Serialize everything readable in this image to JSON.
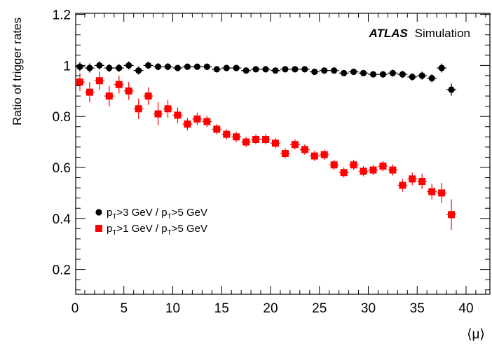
{
  "chart_data": {
    "type": "scatter",
    "title": "",
    "annotation": {
      "bold": "ATLAS",
      "regular": "Simulation"
    },
    "xlabel": "⟨μ⟩",
    "ylabel": "Ratio of trigger rates",
    "xlim": [
      0,
      42.5
    ],
    "ylim": [
      0.1,
      1.2
    ],
    "x_ticks": [
      "0",
      "5",
      "10",
      "15",
      "20",
      "25",
      "30",
      "35",
      "40"
    ],
    "y_ticks": [
      "0.2",
      "0.4",
      "0.6",
      "0.8",
      "1",
      "1.2"
    ],
    "legend_position": "bottom-left",
    "series": [
      {
        "name_parts": [
          "p",
          "T",
          ">3 GeV / p",
          "T",
          ">5 GeV"
        ],
        "color": "#000000",
        "marker": "circle",
        "x": [
          0.5,
          1.5,
          2.5,
          3.5,
          4.5,
          5.5,
          6.5,
          7.5,
          8.5,
          9.5,
          10.5,
          11.5,
          12.5,
          13.5,
          14.5,
          15.5,
          16.5,
          17.5,
          18.5,
          19.5,
          20.5,
          21.5,
          22.5,
          23.5,
          24.5,
          25.5,
          26.5,
          27.5,
          28.5,
          29.5,
          30.5,
          31.5,
          32.5,
          33.5,
          34.5,
          35.5,
          36.5,
          37.5,
          38.5
        ],
        "y": [
          0.995,
          0.99,
          1.0,
          0.99,
          0.99,
          1.0,
          0.98,
          1.0,
          0.995,
          0.995,
          0.99,
          0.995,
          0.995,
          0.995,
          0.985,
          0.99,
          0.99,
          0.98,
          0.985,
          0.985,
          0.98,
          0.985,
          0.985,
          0.985,
          0.975,
          0.98,
          0.98,
          0.97,
          0.975,
          0.97,
          0.965,
          0.965,
          0.97,
          0.965,
          0.955,
          0.96,
          0.95,
          0.99,
          0.905
        ],
        "err": [
          0.018,
          0.018,
          0.016,
          0.016,
          0.016,
          0.016,
          0.016,
          0.014,
          0.014,
          0.014,
          0.012,
          0.012,
          0.012,
          0.012,
          0.012,
          0.012,
          0.012,
          0.012,
          0.012,
          0.012,
          0.012,
          0.012,
          0.012,
          0.012,
          0.012,
          0.012,
          0.012,
          0.012,
          0.012,
          0.012,
          0.012,
          0.012,
          0.014,
          0.014,
          0.014,
          0.016,
          0.016,
          0.018,
          0.024
        ]
      },
      {
        "name_parts": [
          "p",
          "T",
          ">1 GeV / p",
          "T",
          ">5 GeV"
        ],
        "color": "#ff0000",
        "marker": "square",
        "x": [
          0.5,
          1.5,
          2.5,
          3.5,
          4.5,
          5.5,
          6.5,
          7.5,
          8.5,
          9.5,
          10.5,
          11.5,
          12.5,
          13.5,
          14.5,
          15.5,
          16.5,
          17.5,
          18.5,
          19.5,
          20.5,
          21.5,
          22.5,
          23.5,
          24.5,
          25.5,
          26.5,
          27.5,
          28.5,
          29.5,
          30.5,
          31.5,
          32.5,
          33.5,
          34.5,
          35.5,
          36.5,
          37.5,
          38.5
        ],
        "y": [
          0.935,
          0.895,
          0.94,
          0.88,
          0.925,
          0.9,
          0.83,
          0.88,
          0.81,
          0.83,
          0.805,
          0.77,
          0.79,
          0.78,
          0.75,
          0.73,
          0.72,
          0.7,
          0.71,
          0.71,
          0.695,
          0.655,
          0.69,
          0.67,
          0.645,
          0.65,
          0.61,
          0.58,
          0.61,
          0.585,
          0.59,
          0.605,
          0.59,
          0.53,
          0.555,
          0.545,
          0.505,
          0.5,
          0.415
        ],
        "err": [
          0.035,
          0.04,
          0.035,
          0.04,
          0.035,
          0.035,
          0.04,
          0.035,
          0.045,
          0.035,
          0.03,
          0.025,
          0.025,
          0.022,
          0.02,
          0.02,
          0.02,
          0.02,
          0.02,
          0.02,
          0.02,
          0.02,
          0.02,
          0.02,
          0.02,
          0.02,
          0.02,
          0.02,
          0.02,
          0.02,
          0.02,
          0.02,
          0.022,
          0.025,
          0.025,
          0.03,
          0.03,
          0.04,
          0.06
        ]
      }
    ]
  }
}
